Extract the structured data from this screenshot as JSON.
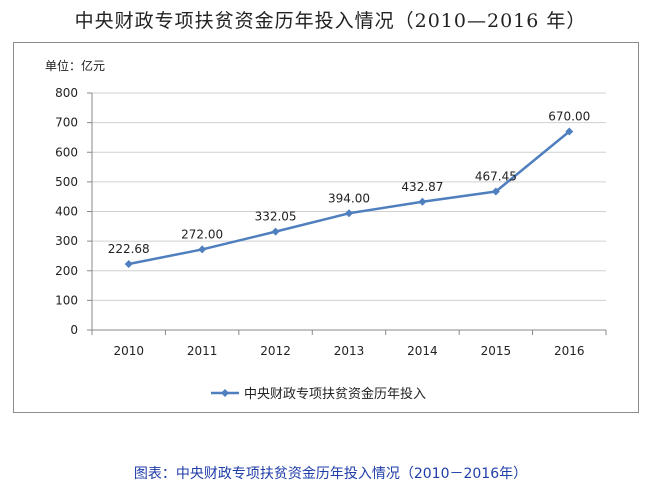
{
  "page": {
    "title": "中央财政专项扶贫资金历年投入情况（2010—2016 年）",
    "caption": "图表：中央财政专项扶贫资金历年投入情况（2010－2016年）"
  },
  "colors": {
    "series": "#4f7fbe",
    "grid": "#d0d0d0",
    "caption": "#1f3ea8"
  },
  "chart_data": {
    "type": "line",
    "unit_label": "单位：亿元",
    "categories": [
      "2010",
      "2011",
      "2012",
      "2013",
      "2014",
      "2015",
      "2016"
    ],
    "series": [
      {
        "name": "中央财政专项扶贫资金历年投入",
        "values": [
          222.68,
          272.0,
          332.05,
          394.0,
          432.87,
          467.45,
          670.0
        ],
        "labels": [
          "222.68",
          "272.00",
          "332.05",
          "394.00",
          "432.87",
          "467.45",
          "670.00"
        ],
        "marker": "diamond"
      }
    ],
    "ylim": [
      0,
      800
    ],
    "yticks": [
      "0",
      "100",
      "200",
      "300",
      "400",
      "500",
      "600",
      "700",
      "800"
    ],
    "grid": true,
    "legend_position": "bottom"
  }
}
